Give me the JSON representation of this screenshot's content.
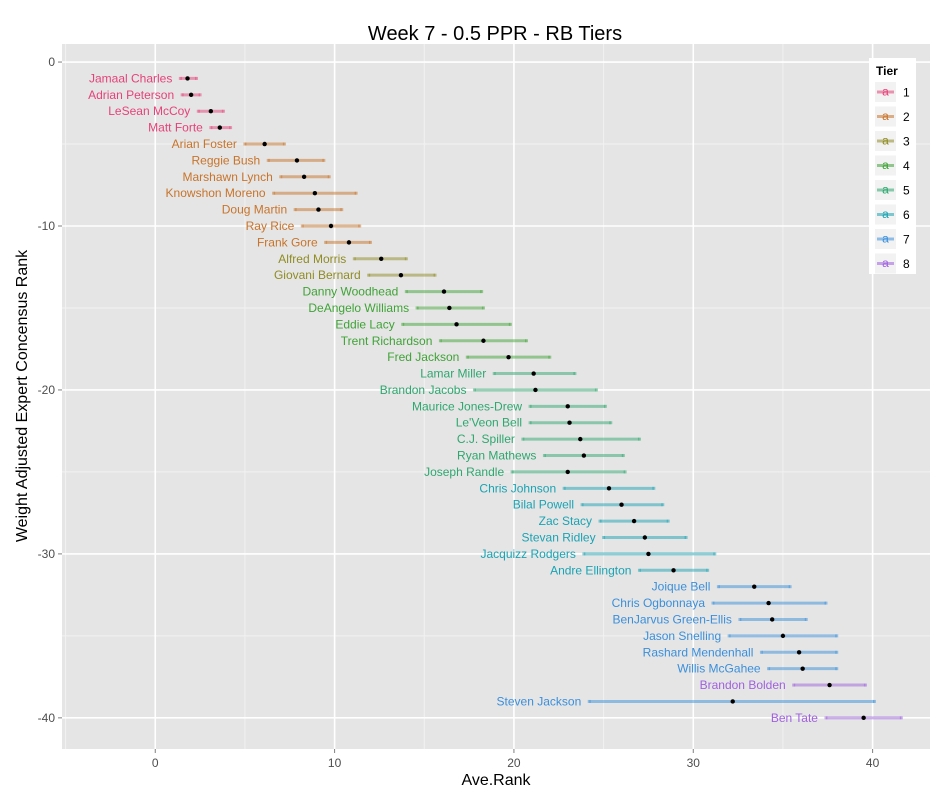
{
  "chart_data": {
    "type": "scatter",
    "title": "Week 7 - 0.5 PPR - RB Tiers",
    "xlabel": "Ave.Rank",
    "ylabel": "Weight Adjusted Expert Concensus Rank",
    "xlim": [
      -5.2,
      43.2
    ],
    "ylim": [
      -41.9,
      1.1
    ],
    "x_ticks": [
      0,
      10,
      20,
      30,
      40
    ],
    "y_ticks": [
      0,
      -10,
      -20,
      -30,
      -40
    ],
    "grid": true,
    "legend": {
      "title": "Tier",
      "position": "top-right",
      "glyph": "a",
      "entries": [
        "1",
        "2",
        "3",
        "4",
        "5",
        "6",
        "7",
        "8"
      ]
    },
    "tier_colors": {
      "1": "#e6427a",
      "2": "#c8742a",
      "3": "#8f8c24",
      "4": "#3fa336",
      "5": "#2ea76f",
      "6": "#1aa3b3",
      "7": "#3a8fdc",
      "8": "#a061e0"
    },
    "point_color": "#000000",
    "players": [
      {
        "name": "Jamaal Charles",
        "rank": -1,
        "ave": 1.8,
        "low": 1.4,
        "high": 2.3,
        "tier": 1
      },
      {
        "name": "Adrian Peterson",
        "rank": -2,
        "ave": 2.0,
        "low": 1.5,
        "high": 2.5,
        "tier": 1
      },
      {
        "name": "LeSean McCoy",
        "rank": -3,
        "ave": 3.1,
        "low": 2.4,
        "high": 3.8,
        "tier": 1
      },
      {
        "name": "Matt Forte",
        "rank": -4,
        "ave": 3.6,
        "low": 3.1,
        "high": 4.2,
        "tier": 1
      },
      {
        "name": "Arian Foster",
        "rank": -5,
        "ave": 6.1,
        "low": 5.0,
        "high": 7.2,
        "tier": 2
      },
      {
        "name": "Reggie Bush",
        "rank": -6,
        "ave": 7.9,
        "low": 6.3,
        "high": 9.4,
        "tier": 2
      },
      {
        "name": "Marshawn Lynch",
        "rank": -7,
        "ave": 8.3,
        "low": 7.0,
        "high": 9.7,
        "tier": 2
      },
      {
        "name": "Knowshon Moreno",
        "rank": -8,
        "ave": 8.9,
        "low": 6.6,
        "high": 11.2,
        "tier": 2
      },
      {
        "name": "Doug Martin",
        "rank": -9,
        "ave": 9.1,
        "low": 7.8,
        "high": 10.4,
        "tier": 2
      },
      {
        "name": "Ray Rice",
        "rank": -10,
        "ave": 9.8,
        "low": 8.2,
        "high": 11.4,
        "tier": 2
      },
      {
        "name": "Frank Gore",
        "rank": -11,
        "ave": 10.8,
        "low": 9.5,
        "high": 12.0,
        "tier": 2
      },
      {
        "name": "Alfred Morris",
        "rank": -12,
        "ave": 12.6,
        "low": 11.1,
        "high": 14.0,
        "tier": 3
      },
      {
        "name": "Giovani Bernard",
        "rank": -13,
        "ave": 13.7,
        "low": 11.9,
        "high": 15.6,
        "tier": 3
      },
      {
        "name": "Danny Woodhead",
        "rank": -14,
        "ave": 16.1,
        "low": 14.0,
        "high": 18.2,
        "tier": 4
      },
      {
        "name": "DeAngelo Williams",
        "rank": -15,
        "ave": 16.4,
        "low": 14.6,
        "high": 18.3,
        "tier": 4
      },
      {
        "name": "Eddie Lacy",
        "rank": -16,
        "ave": 16.8,
        "low": 13.8,
        "high": 19.8,
        "tier": 4
      },
      {
        "name": "Trent Richardson",
        "rank": -17,
        "ave": 18.3,
        "low": 15.9,
        "high": 20.7,
        "tier": 4
      },
      {
        "name": "Fred Jackson",
        "rank": -18,
        "ave": 19.7,
        "low": 17.4,
        "high": 22.0,
        "tier": 4
      },
      {
        "name": "Lamar Miller",
        "rank": -19,
        "ave": 21.1,
        "low": 18.9,
        "high": 23.4,
        "tier": 5
      },
      {
        "name": "Brandon Jacobs",
        "rank": -20,
        "ave": 21.2,
        "low": 17.8,
        "high": 24.6,
        "tier": 5
      },
      {
        "name": "Maurice Jones-Drew",
        "rank": -21,
        "ave": 23.0,
        "low": 20.9,
        "high": 25.1,
        "tier": 5
      },
      {
        "name": "Le'Veon Bell",
        "rank": -22,
        "ave": 23.1,
        "low": 20.9,
        "high": 25.4,
        "tier": 5
      },
      {
        "name": "C.J. Spiller",
        "rank": -23,
        "ave": 23.7,
        "low": 20.5,
        "high": 27.0,
        "tier": 5
      },
      {
        "name": "Ryan Mathews",
        "rank": -24,
        "ave": 23.9,
        "low": 21.7,
        "high": 26.1,
        "tier": 5
      },
      {
        "name": "Joseph Randle",
        "rank": -25,
        "ave": 23.0,
        "low": 19.9,
        "high": 26.2,
        "tier": 5
      },
      {
        "name": "Chris Johnson",
        "rank": -26,
        "ave": 25.3,
        "low": 22.8,
        "high": 27.8,
        "tier": 6
      },
      {
        "name": "Bilal Powell",
        "rank": -27,
        "ave": 26.0,
        "low": 23.8,
        "high": 28.3,
        "tier": 6
      },
      {
        "name": "Zac Stacy",
        "rank": -28,
        "ave": 26.7,
        "low": 24.8,
        "high": 28.6,
        "tier": 6
      },
      {
        "name": "Stevan Ridley",
        "rank": -29,
        "ave": 27.3,
        "low": 25.0,
        "high": 29.6,
        "tier": 6
      },
      {
        "name": "Jacquizz Rodgers",
        "rank": -30,
        "ave": 27.5,
        "low": 23.9,
        "high": 31.2,
        "tier": 6
      },
      {
        "name": "Andre Ellington",
        "rank": -31,
        "ave": 28.9,
        "low": 27.0,
        "high": 30.8,
        "tier": 6
      },
      {
        "name": "Joique Bell",
        "rank": -32,
        "ave": 33.4,
        "low": 31.4,
        "high": 35.4,
        "tier": 7
      },
      {
        "name": "Chris Ogbonnaya",
        "rank": -33,
        "ave": 34.2,
        "low": 31.1,
        "high": 37.4,
        "tier": 7
      },
      {
        "name": "BenJarvus Green-Ellis",
        "rank": -34,
        "ave": 34.4,
        "low": 32.6,
        "high": 36.3,
        "tier": 7
      },
      {
        "name": "Jason Snelling",
        "rank": -35,
        "ave": 35.0,
        "low": 32.0,
        "high": 38.0,
        "tier": 7
      },
      {
        "name": "Rashard Mendenhall",
        "rank": -36,
        "ave": 35.9,
        "low": 33.8,
        "high": 38.0,
        "tier": 7
      },
      {
        "name": "Willis McGahee",
        "rank": -37,
        "ave": 36.1,
        "low": 34.2,
        "high": 38.0,
        "tier": 7
      },
      {
        "name": "Brandon Bolden",
        "rank": -38,
        "ave": 37.6,
        "low": 35.6,
        "high": 39.6,
        "tier": 8
      },
      {
        "name": "Steven Jackson",
        "rank": -39,
        "ave": 32.2,
        "low": 24.2,
        "high": 40.1,
        "tier": 7
      },
      {
        "name": "Ben Tate",
        "rank": -40,
        "ave": 39.5,
        "low": 37.4,
        "high": 41.6,
        "tier": 8
      }
    ]
  }
}
